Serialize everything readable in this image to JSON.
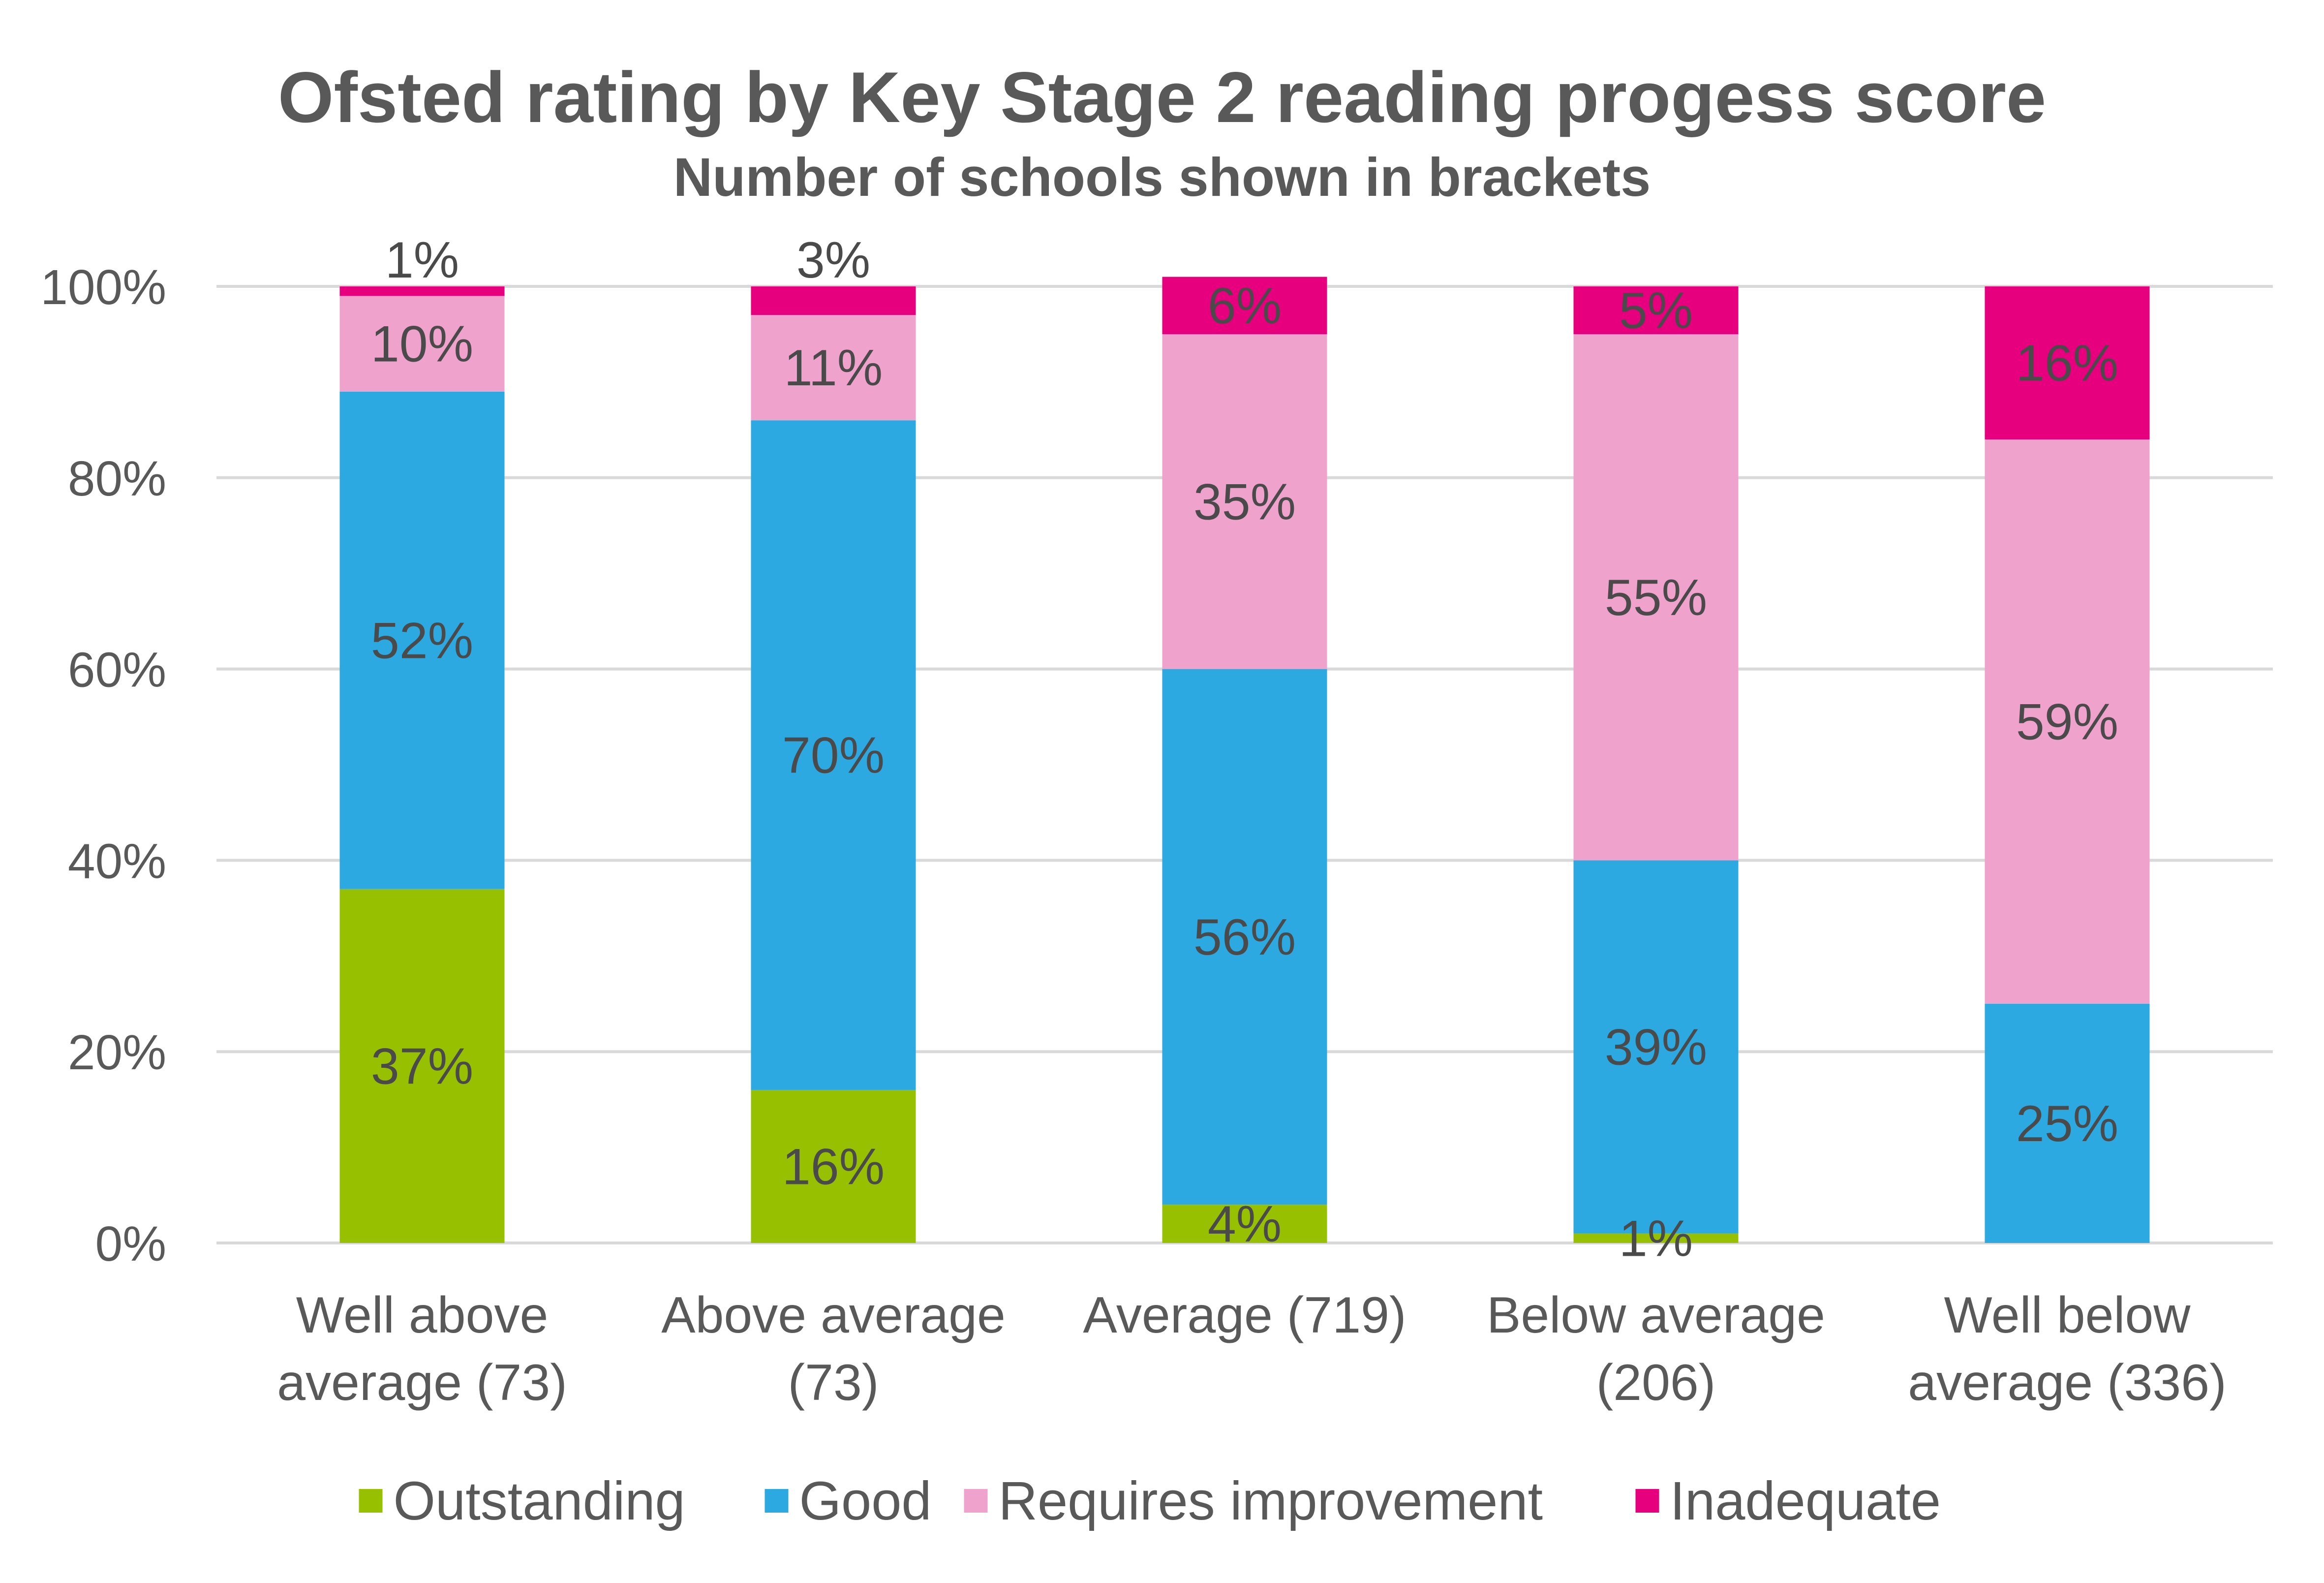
{
  "chart_data": {
    "type": "bar",
    "stacked": true,
    "title": "Ofsted rating by Key Stage 2 reading progess score",
    "subtitle": "Number  of schools shown  in brackets",
    "categories": [
      [
        "Well above",
        "average (73)"
      ],
      [
        "Above average",
        "(73)"
      ],
      [
        "Average (719)"
      ],
      [
        "Below average",
        "(206)"
      ],
      [
        "Well below",
        "average (336)"
      ]
    ],
    "series": [
      {
        "name": "Outstanding",
        "color": "#97c100",
        "values": [
          37,
          16,
          4,
          1,
          0
        ],
        "labels": [
          "37%",
          "16%",
          "4%",
          "1%",
          ""
        ]
      },
      {
        "name": "Good",
        "color": "#2da9e1",
        "values": [
          52,
          70,
          56,
          39,
          25
        ],
        "labels": [
          "52%",
          "70%",
          "56%",
          "39%",
          "25%"
        ]
      },
      {
        "name": "Requires improvement",
        "color": "#efa3cc",
        "values": [
          10,
          11,
          35,
          55,
          59
        ],
        "labels": [
          "10%",
          "11%",
          "35%",
          "55%",
          "59%"
        ]
      },
      {
        "name": "Inadequate",
        "color": "#e6007e",
        "values": [
          1,
          3,
          6,
          5,
          16
        ],
        "labels": [
          "1%",
          "3%",
          "6%",
          "5%",
          "16%"
        ]
      }
    ],
    "y_ticks": [
      "0%",
      "20%",
      "40%",
      "60%",
      "80%",
      "100%"
    ],
    "ylim": [
      0,
      100
    ],
    "grid": true,
    "legend_position": "bottom"
  }
}
